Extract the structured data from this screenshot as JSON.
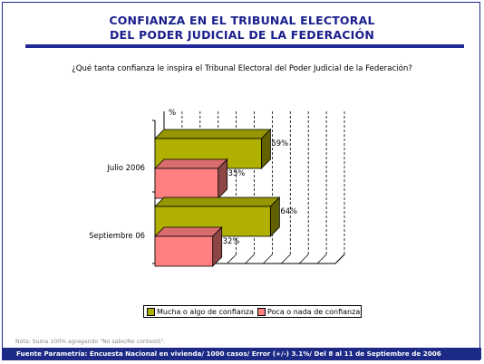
{
  "header": {
    "title_line1": "CONFIANZA EN EL TRIBUNAL ELECTORAL",
    "title_line2": "DEL PODER JUDICIAL DE LA FEDERACIÓN"
  },
  "question": "¿Qué tanta confianza le inspira el  Tribunal Electoral del Poder Judicial de la Federación?",
  "note": "Nota: Suma 100% agregando  \"No sabe/No contestó\".",
  "footer": "Fuente Parametría: Encuesta Nacional en vivienda/ 1000 casos/ Error (+/-) 3.1%/ Del 8 al 11 de Septiembre de 2006",
  "colors": {
    "series1": "#b0b000",
    "series2": "#ff8080",
    "title": "#1a1f8c",
    "footer_bg": "#1c2a86"
  },
  "chart_data": {
    "type": "bar",
    "orientation": "horizontal",
    "unit_label": "%",
    "categories": [
      "Julio 2006",
      "Septiembre 06"
    ],
    "series": [
      {
        "name": "Mucha o algo de confianza",
        "values": [
          59,
          64
        ],
        "labels": [
          "59%",
          "64%"
        ]
      },
      {
        "name": "Poca o nada de confianza",
        "values": [
          35,
          32
        ],
        "labels": [
          "35%",
          "32%"
        ]
      }
    ],
    "xlim": [
      0,
      100
    ],
    "grid": true,
    "legend_position": "bottom"
  }
}
